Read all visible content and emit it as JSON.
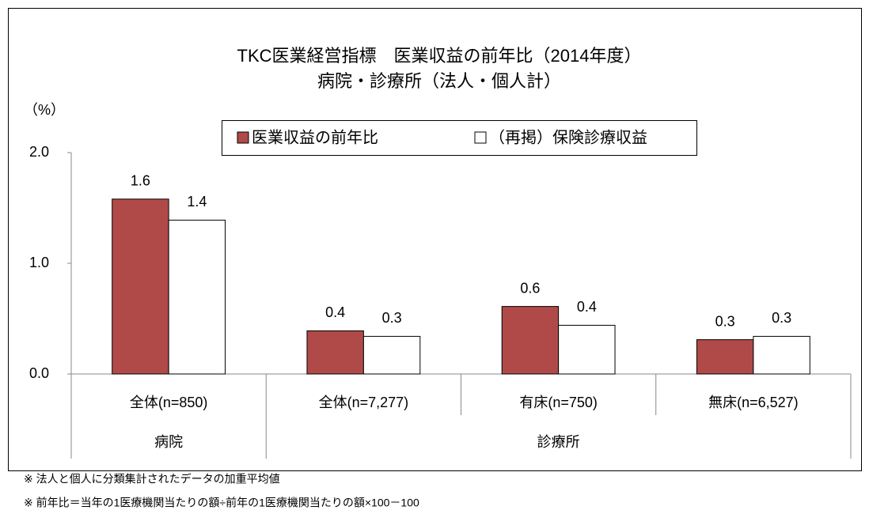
{
  "chart_data": {
    "type": "bar",
    "title": "TKC医業経営指標　医業収益の前年比（2014年度）",
    "subtitle": "病院・診療所（法人・個人計）",
    "y_label": "（%）",
    "groups": [
      {
        "name": "病院",
        "categories": [
          "全体(n=850)"
        ]
      },
      {
        "name": "診療所",
        "categories": [
          "全体(n=7,277)",
          "有床(n=750)",
          "無床(n=6,527)"
        ]
      }
    ],
    "series": [
      {
        "name": "医業収益の前年比",
        "color": "#b04a48",
        "values": [
          1.58,
          0.39,
          0.61,
          0.31
        ],
        "value_labels": [
          "1.6",
          "0.4",
          "0.6",
          "0.3"
        ]
      },
      {
        "name": "（再掲）保険診療収益",
        "color": "#ffffff",
        "values": [
          1.39,
          0.34,
          0.44,
          0.34
        ],
        "value_labels": [
          "1.4",
          "0.3",
          "0.4",
          "0.3"
        ]
      }
    ],
    "ylim": [
      0,
      2
    ],
    "yticks": [
      {
        "value": 0,
        "label": "0.0"
      },
      {
        "value": 1,
        "label": "1.0"
      },
      {
        "value": 2,
        "label": "2.0"
      }
    ],
    "notes": [
      "※ 法人と個人に分類集計されたデータの加重平均値",
      "※ 前年比＝当年の1医療機関当たりの額÷前年の1医療機関当たりの額×100－100"
    ]
  }
}
